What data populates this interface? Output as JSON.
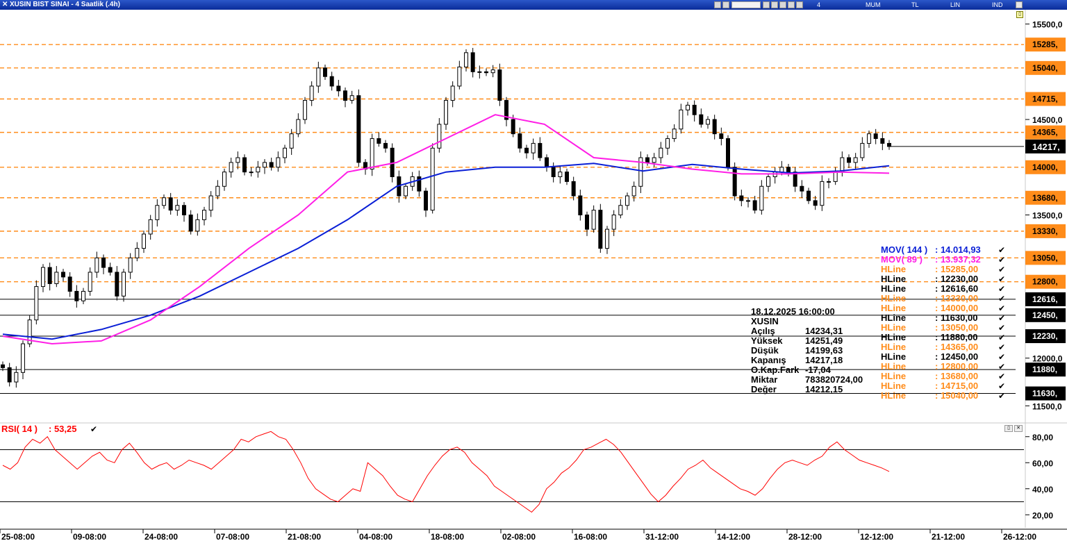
{
  "window": {
    "title": "XUSIN BIST SINAI - 4 Saatlik (.4h)",
    "toolbar": [
      "4 Saatlik",
      "MUM",
      "TL",
      "LIN",
      "IND"
    ]
  },
  "colors": {
    "price_label_bg": "#ff8c1a",
    "price_label_bg_dark": "#000000",
    "hline_orange": "#ff8c1a",
    "mov144": "#0a1fd6",
    "mov89": "#ff1ee6",
    "rsi": "#ff0000",
    "candle": "#000000"
  },
  "chart_data": [
    {
      "type": "candlestick",
      "symbol": "XUSIN",
      "interval": "4 Saatlik",
      "ylim": [
        11350,
        15650
      ],
      "y_ticks": [
        "15500,0",
        "14500,0",
        "13500,0",
        "12000,0",
        "11500,0"
      ],
      "x_ticks": [
        "25-08:00",
        "09-08:00",
        "24-08:00",
        "07-08:00",
        "21-08:00",
        "04-08:00",
        "18-08:00",
        "02-08:00",
        "16-08:00",
        "31-12:00",
        "14-12:00",
        "28-12:00",
        "12-12:00",
        "21-12:00",
        "26-12:00"
      ],
      "approx_close_path": [
        11900,
        11750,
        11850,
        12150,
        12400,
        12750,
        12950,
        12780,
        12900,
        12850,
        12700,
        12600,
        12700,
        12900,
        13050,
        12950,
        12900,
        12650,
        12900,
        13050,
        13150,
        13300,
        13450,
        13600,
        13680,
        13550,
        13600,
        13500,
        13330,
        13450,
        13550,
        13700,
        13800,
        13950,
        14050,
        14100,
        13950,
        13950,
        14000,
        14050,
        14000,
        14100,
        14200,
        14350,
        14500,
        14700,
        14850,
        15040,
        14950,
        14850,
        14800,
        14700,
        14750,
        14050,
        13980,
        14300,
        14250,
        14200,
        13900,
        13700,
        13800,
        13900,
        13750,
        13550,
        14200,
        14450,
        14700,
        14850,
        15050,
        15200,
        15000,
        15000,
        14990,
        15020,
        14700,
        14500,
        14350,
        14200,
        14150,
        14250,
        14100,
        14000,
        13900,
        13950,
        13850,
        13700,
        13500,
        13350,
        13550,
        13150,
        13350,
        13500,
        13600,
        13700,
        13800,
        14100,
        14050,
        14100,
        14200,
        14300,
        14400,
        14600,
        14650,
        14550,
        14450,
        14500,
        14350,
        14300,
        14000,
        13700,
        13650,
        13650,
        13550,
        13800,
        13900,
        13950,
        14000,
        13950,
        13800,
        13750,
        13650,
        13600,
        13850,
        13850,
        13950,
        14100,
        14050,
        14100,
        14250,
        14350,
        14300,
        14250,
        14217
      ],
      "series": [
        {
          "name": "MOV( 144 )",
          "values": [
            12250,
            12200,
            12300,
            12450,
            12650,
            12900,
            13150,
            13450,
            13800,
            13950,
            14000,
            14000,
            14040,
            13960,
            14030,
            13980,
            13940,
            13960,
            14014.93
          ]
        },
        {
          "name": "MOV( 89 )",
          "values": [
            12230,
            12150,
            12180,
            12400,
            12750,
            13150,
            13500,
            13950,
            14050,
            14300,
            14550,
            14450,
            14100,
            14050,
            13980,
            13930,
            13930,
            13950,
            13937.32
          ]
        }
      ],
      "hlines": [
        {
          "label": "15285,",
          "value": 15285,
          "style": "dashed-orange"
        },
        {
          "label": "15040,",
          "value": 15040,
          "style": "dashed-orange"
        },
        {
          "label": "14715,",
          "value": 14715,
          "style": "dashed-orange"
        },
        {
          "label": "14365,",
          "value": 14365,
          "style": "dashed-orange"
        },
        {
          "label": "14000,",
          "value": 14000,
          "style": "dashed-orange"
        },
        {
          "label": "13680,",
          "value": 13680,
          "style": "dashed-orange"
        },
        {
          "label": "13330,",
          "value": 13330,
          "style": "dashed-orange"
        },
        {
          "label": "13050,",
          "value": 13050,
          "style": "dashed-orange"
        },
        {
          "label": "12800,",
          "value": 12800,
          "style": "dashed-orange"
        },
        {
          "label": "12616,",
          "value": 12616.6,
          "style": "solid-black"
        },
        {
          "label": "12450,",
          "value": 12450,
          "style": "solid-black"
        },
        {
          "label": "12230,",
          "value": 12230,
          "style": "solid-black"
        },
        {
          "label": "11880,",
          "value": 11880,
          "style": "solid-black"
        },
        {
          "label": "11630,",
          "value": 11630,
          "style": "solid-black"
        }
      ],
      "last_price_label": "14217,",
      "last_price": 14217.18
    },
    {
      "type": "line",
      "title": "RSI( 14 )",
      "ylim": [
        10,
        90
      ],
      "y_ticks": [
        "80,00",
        "60,00",
        "40,00",
        "20,00"
      ],
      "reference_lines": [
        70,
        30
      ],
      "series": [
        {
          "name": "RSI( 14 )",
          "values": [
            58,
            55,
            60,
            72,
            78,
            75,
            80,
            70,
            65,
            60,
            55,
            60,
            65,
            68,
            62,
            60,
            70,
            75,
            68,
            60,
            55,
            58,
            60,
            55,
            58,
            62,
            60,
            58,
            55,
            60,
            65,
            70,
            78,
            76,
            80,
            82,
            84,
            80,
            78,
            70,
            60,
            48,
            40,
            36,
            32,
            30,
            35,
            40,
            38,
            60,
            55,
            50,
            42,
            35,
            32,
            30,
            40,
            50,
            58,
            65,
            70,
            72,
            68,
            60,
            55,
            50,
            42,
            38,
            34,
            30,
            26,
            22,
            28,
            40,
            45,
            52,
            56,
            62,
            70,
            72,
            75,
            78,
            74,
            68,
            60,
            52,
            44,
            36,
            30,
            35,
            42,
            48,
            55,
            58,
            62,
            56,
            52,
            48,
            44,
            40,
            38,
            35,
            40,
            48,
            55,
            60,
            62,
            60,
            58,
            62,
            65,
            72,
            76,
            70,
            66,
            62,
            60,
            58,
            56,
            53.25
          ]
        }
      ],
      "value_label": "53,25"
    }
  ],
  "legend": [
    {
      "name": "MOV( 144 )",
      "value": ": 14.014,93",
      "color": "#0a1fd6"
    },
    {
      "name": "MOV( 89 )",
      "value": ": 13.937,32",
      "color": "#ff1ee6"
    },
    {
      "name": "HLine",
      "value": ": 15285,00",
      "color": "#ff8c1a"
    },
    {
      "name": "HLine",
      "value": ": 12230,00",
      "color": "#000000"
    },
    {
      "name": "HLine",
      "value": ": 12616,60",
      "color": "#000000"
    },
    {
      "name": "HLine",
      "value": ": 13330,00",
      "color": "#ff8c1a"
    },
    {
      "name": "HLine",
      "value": ": 14000,00",
      "color": "#ff8c1a"
    },
    {
      "name": "HLine",
      "value": ": 11630,00",
      "color": "#000000"
    },
    {
      "name": "HLine",
      "value": ": 13050,00",
      "color": "#ff8c1a"
    },
    {
      "name": "HLine",
      "value": ": 11880,00",
      "color": "#000000"
    },
    {
      "name": "HLine",
      "value": ": 14365,00",
      "color": "#ff8c1a"
    },
    {
      "name": "HLine",
      "value": ": 12450,00",
      "color": "#000000"
    },
    {
      "name": "HLine",
      "value": ": 12800,00",
      "color": "#ff8c1a"
    },
    {
      "name": "HLine",
      "value": ": 13680,00",
      "color": "#ff8c1a"
    },
    {
      "name": "HLine",
      "value": ": 14715,00",
      "color": "#ff8c1a"
    },
    {
      "name": "HLine",
      "value": ": 15040,00",
      "color": "#ff8c1a"
    }
  ],
  "info_panel": {
    "datetime": "18.12.2025  16:00:00",
    "symbol": "XUSIN",
    "rows": [
      {
        "label": "Açılış",
        "value": "14234,31"
      },
      {
        "label": "Yüksek",
        "value": "14251,49"
      },
      {
        "label": "Düşük",
        "value": "14199,63"
      },
      {
        "label": "Kapanış",
        "value": "14217,18"
      },
      {
        "label": "O.Kap.Fark",
        "value": "-17,04"
      },
      {
        "label": "Miktar",
        "value": "783820724,00"
      },
      {
        "label": "Değer",
        "value": "14212,15"
      }
    ]
  },
  "rsi_label": {
    "name": "RSI( 14 )",
    "value": ": 53,25"
  }
}
